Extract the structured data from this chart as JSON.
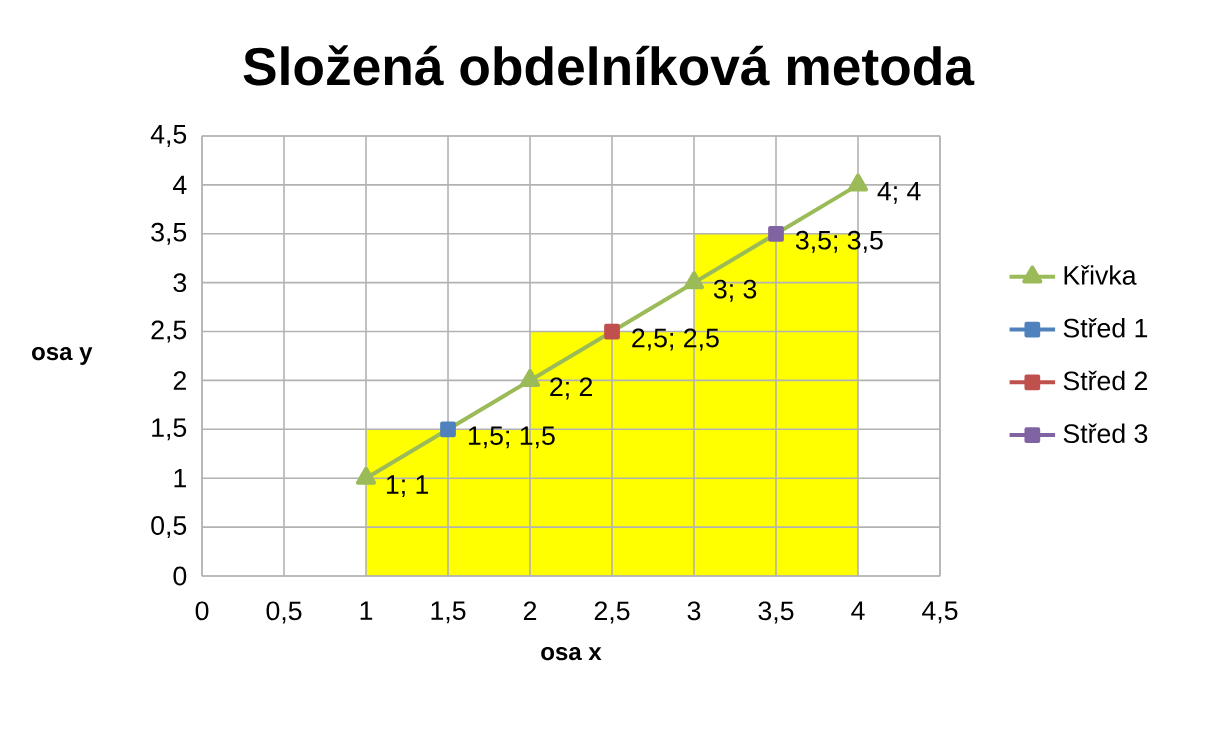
{
  "chart_data": {
    "type": "line",
    "title": "Složená obdelníková metoda",
    "xlabel": "osa x",
    "ylabel": "osa y",
    "xlim": [
      0,
      4.5
    ],
    "ylim": [
      0,
      4.5
    ],
    "xticks": [
      0,
      {
        "value": 0.5,
        "label": "0,5"
      },
      1,
      {
        "value": 1.5,
        "label": "1,5"
      },
      2,
      {
        "value": 2.5,
        "label": "2,5"
      },
      3,
      {
        "value": 3.5,
        "label": "3,5"
      },
      4,
      {
        "value": 4.5,
        "label": "4,5"
      }
    ],
    "yticks": [
      0,
      {
        "value": 0.5,
        "label": "0,5"
      },
      1,
      {
        "value": 1.5,
        "label": "1,5"
      },
      2,
      {
        "value": 2.5,
        "label": "2,5"
      },
      3,
      {
        "value": 3.5,
        "label": "3,5"
      },
      4,
      {
        "value": 4.5,
        "label": "4,5"
      }
    ],
    "grid": true,
    "legend": "right",
    "series": [
      {
        "type": "bar",
        "color": "#ffff00",
        "x": [
          1.5,
          2.5,
          3.5
        ],
        "values": [
          1.5,
          2.5,
          3.5
        ]
      },
      {
        "name": "Křivka",
        "color": "#9bbb59",
        "marker": "triangle",
        "x": [
          1,
          2,
          3,
          4
        ],
        "values": [
          1,
          2,
          3,
          4
        ],
        "value_labels": [
          "1; 1",
          "2; 2",
          "3; 3",
          "4; 4"
        ]
      },
      {
        "name": "Střed 1",
        "color": "#4f81bd",
        "marker": "square",
        "x": [
          1.5
        ],
        "values": [
          1.5
        ],
        "value_labels": [
          "1,5; 1,5"
        ]
      },
      {
        "name": "Střed 2",
        "color": "#c0504d",
        "marker": "square",
        "x": [
          2.5
        ],
        "values": [
          2.5
        ],
        "value_labels": [
          "2,5; 2,5"
        ]
      },
      {
        "name": "Střed 3",
        "color": "#8064a2",
        "marker": "square",
        "x": [
          3.5
        ],
        "values": [
          3.5
        ],
        "value_labels": [
          "3,5; 3,5"
        ]
      }
    ]
  }
}
